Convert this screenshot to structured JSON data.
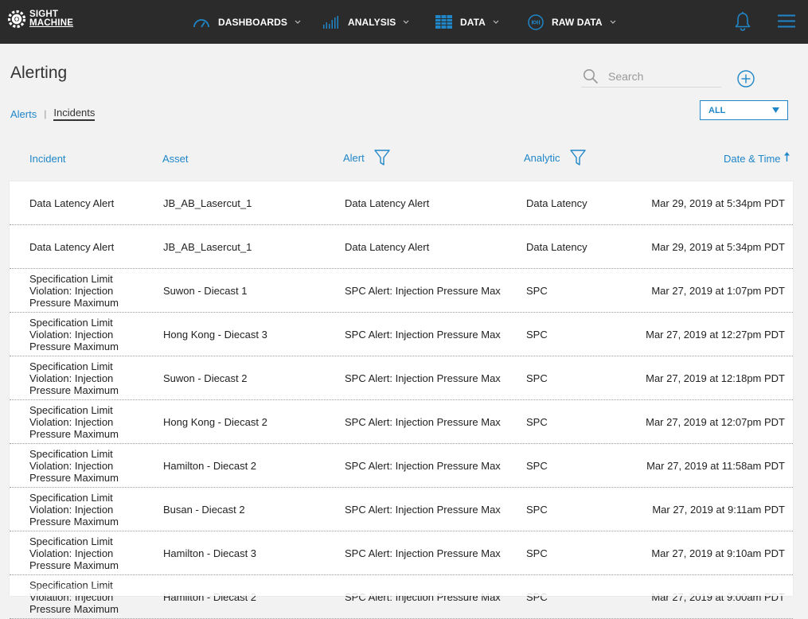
{
  "app": {
    "logo_line1": "SIGHT",
    "logo_line2": "MACHINE"
  },
  "nav": {
    "items": [
      {
        "label": "DASHBOARDS",
        "icon": "speedometer-icon"
      },
      {
        "label": "ANALYSIS",
        "icon": "bar-chart-icon"
      },
      {
        "label": "DATA",
        "icon": "grid-table-icon"
      },
      {
        "label": "RAW DATA",
        "icon": "binary-circle-icon"
      }
    ]
  },
  "page": {
    "title": "Alerting",
    "breadcrumb": {
      "alerts": "Alerts",
      "separator": "|",
      "incidents": "Incidents"
    }
  },
  "search": {
    "placeholder": "Search",
    "value": ""
  },
  "filter": {
    "selected": "ALL"
  },
  "table": {
    "columns": {
      "incident": "Incident",
      "asset": "Asset",
      "alert": "Alert",
      "analytic": "Analytic",
      "datetime": "Date & Time"
    },
    "rows": [
      {
        "incident": "Data Latency Alert",
        "asset": "JB_AB_Lasercut_1",
        "alert": "Data Latency Alert",
        "analytic": "Data Latency",
        "datetime": "Mar 29, 2019 at 5:34pm PDT"
      },
      {
        "incident": "Data Latency Alert",
        "asset": "JB_AB_Lasercut_1",
        "alert": "Data Latency Alert",
        "analytic": "Data Latency",
        "datetime": "Mar 29, 2019 at 5:34pm PDT"
      },
      {
        "incident": "Specification Limit Violation: Injection Pressure Maximum",
        "asset": "Suwon - Diecast 1",
        "alert": "SPC Alert: Injection Pressure Max",
        "analytic": "SPC",
        "datetime": "Mar 27, 2019 at 1:07pm PDT"
      },
      {
        "incident": "Specification Limit Violation: Injection Pressure Maximum",
        "asset": "Hong Kong - Diecast 3",
        "alert": "SPC Alert: Injection Pressure Max",
        "analytic": "SPC",
        "datetime": "Mar 27, 2019 at 12:27pm PDT"
      },
      {
        "incident": "Specification Limit Violation: Injection Pressure Maximum",
        "asset": "Suwon - Diecast 2",
        "alert": "SPC Alert: Injection Pressure Max",
        "analytic": "SPC",
        "datetime": "Mar 27, 2019 at 12:18pm PDT"
      },
      {
        "incident": "Specification Limit Violation: Injection Pressure Maximum",
        "asset": "Hong Kong - Diecast 2",
        "alert": "SPC Alert: Injection Pressure Max",
        "analytic": "SPC",
        "datetime": "Mar 27, 2019 at 12:07pm PDT"
      },
      {
        "incident": "Specification Limit Violation: Injection Pressure Maximum",
        "asset": "Hamilton - Diecast 2",
        "alert": "SPC Alert: Injection Pressure Max",
        "analytic": "SPC",
        "datetime": "Mar 27, 2019 at 11:58am PDT"
      },
      {
        "incident": "Specification Limit Violation: Injection Pressure Maximum",
        "asset": "Busan - Diecast 2",
        "alert": "SPC Alert: Injection Pressure Max",
        "analytic": "SPC",
        "datetime": "Mar 27, 2019 at 9:11am PDT"
      },
      {
        "incident": "Specification Limit Violation: Injection Pressure Maximum",
        "asset": "Hamilton - Diecast 3",
        "alert": "SPC Alert: Injection Pressure Max",
        "analytic": "SPC",
        "datetime": "Mar 27, 2019 at 9:10am PDT"
      },
      {
        "incident": "Specification Limit Violation: Injection Pressure Maximum",
        "asset": "Hamilton - Diecast 2",
        "alert": "SPC Alert: Injection Pressure Max",
        "analytic": "SPC",
        "datetime": "Mar 27, 2019 at 9:00am PDT"
      }
    ]
  },
  "colors": {
    "topbar": "#2b2b2b",
    "accent": "#1f86c8",
    "background": "#f2f2f2"
  }
}
